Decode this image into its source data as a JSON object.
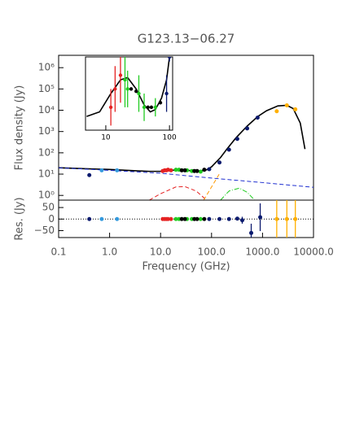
{
  "chart_data": [
    {
      "type": "scatter",
      "title": "G123.13−06.27",
      "ylabel": "Flux density (Jy)",
      "xlog": true,
      "ylog": true,
      "xlim": [
        0.1,
        10000
      ],
      "ylim": [
        0.6,
        3800000
      ],
      "yticks": [
        {
          "value": 1,
          "label": "10⁰"
        },
        {
          "value": 10,
          "label": "10¹"
        },
        {
          "value": 100,
          "label": "10²"
        },
        {
          "value": 1000,
          "label": "10³"
        },
        {
          "value": 10000,
          "label": "10⁴"
        },
        {
          "value": 100000,
          "label": "10⁵"
        },
        {
          "value": 1000000,
          "label": "10⁶"
        }
      ],
      "lines": [
        {
          "color": "#000000",
          "style": "solid",
          "x": [
            0.1,
            0.3,
            1,
            3,
            6,
            10,
            15,
            25,
            40,
            60,
            80,
            100,
            150,
            200,
            300,
            500,
            800,
            1200,
            2000,
            3000,
            4000,
            5500,
            6800
          ],
          "values": [
            20,
            18,
            16.5,
            14.5,
            13.5,
            13.5,
            15,
            16,
            14.5,
            14,
            16,
            22,
            60,
            150,
            500,
            1800,
            5000,
            9500,
            16000,
            17000,
            12000,
            2500,
            150
          ]
        },
        {
          "color": "#1f2fd0",
          "style": "dashed",
          "x": [
            0.1,
            1,
            10,
            100,
            1000,
            10000
          ],
          "values": [
            20,
            15,
            11,
            6.5,
            4,
            2.4
          ]
        },
        {
          "color": "#e52222",
          "style": "dashed",
          "x": [
            6,
            10,
            20,
            30,
            50,
            80
          ],
          "values": [
            0.6,
            1.2,
            2.5,
            2.6,
            1.6,
            0.6
          ]
        },
        {
          "color": "#ff9900",
          "style": "dashed",
          "x": [
            70,
            100,
            145
          ],
          "values": [
            0.6,
            2.5,
            11
          ]
        },
        {
          "color": "#22cc22",
          "style": "dashdot",
          "x": [
            150,
            220,
            350,
            500,
            700
          ],
          "values": [
            0.6,
            1.6,
            2.2,
            1.4,
            0.6
          ]
        }
      ],
      "series": [
        {
          "color": "#0b1a6e",
          "x": [
            0.4,
            90,
            143,
            220,
            320,
            500,
            800
          ],
          "values": [
            9,
            17,
            35,
            140,
            450,
            1400,
            4500
          ]
        },
        {
          "color": "#3399dd",
          "x": [
            0.7,
            1.4
          ],
          "values": [
            15,
            15
          ]
        },
        {
          "color": "#e52222",
          "x": [
            11,
            12,
            13,
            14,
            16
          ],
          "values": [
            14,
            15,
            15,
            16,
            15
          ]
        },
        {
          "color": "#22cc22",
          "x": [
            20,
            23,
            33,
            41,
            61
          ],
          "values": [
            16,
            16,
            15,
            14,
            13
          ]
        },
        {
          "color": "#000000",
          "x": [
            26,
            30,
            46,
            52,
            72
          ],
          "values": [
            15,
            15,
            14,
            14,
            16
          ]
        },
        {
          "color": "#ffb000",
          "x": [
            1900,
            3000,
            4400
          ],
          "values": [
            9000,
            17000,
            11000
          ]
        }
      ]
    },
    {
      "type": "scatter",
      "ylabel": "Res. (Jy)",
      "xlabel": "Frequency (GHz)",
      "xlog": true,
      "xlim": [
        0.1,
        10000
      ],
      "ylim": [
        -80,
        82
      ],
      "hline": 0,
      "xticks": [
        0.1,
        {
          "value": 1,
          "label": "1.0"
        },
        {
          "value": 10,
          "label": "10.0"
        },
        {
          "value": 100,
          "label": "100.0"
        },
        {
          "value": 1000,
          "label": "1000.0"
        },
        {
          "value": 10000,
          "label": "10000.0"
        }
      ],
      "yticks": [
        50,
        0,
        {
          "value": -50,
          "label": "−50"
        }
      ],
      "series": [
        {
          "color": "#0b1a6e",
          "x": [
            0.4,
            90,
            143,
            220,
            320,
            400,
            600,
            900
          ],
          "values": [
            0,
            0,
            0,
            0,
            2,
            -5,
            -60,
            8
          ],
          "errors": [
            2,
            2,
            2,
            3,
            5,
            15,
            40,
            60
          ]
        },
        {
          "color": "#3399dd",
          "x": [
            0.7,
            1.4
          ],
          "values": [
            0,
            0
          ]
        },
        {
          "color": "#e52222",
          "x": [
            11,
            12,
            13,
            14,
            16
          ],
          "values": [
            0,
            0,
            0,
            0,
            0
          ]
        },
        {
          "color": "#22cc22",
          "x": [
            20,
            23,
            33,
            41,
            61
          ],
          "values": [
            0,
            0,
            0,
            0,
            0
          ]
        },
        {
          "color": "#000000",
          "x": [
            26,
            30,
            46,
            52,
            72
          ],
          "values": [
            0,
            0,
            0,
            0,
            0
          ]
        },
        {
          "color": "#ffb000",
          "x": [
            1900,
            3000,
            4400
          ],
          "values": [
            0,
            0,
            0
          ],
          "errors": [
            200,
            200,
            200
          ]
        }
      ]
    },
    {
      "type": "scatter",
      "xlog": true,
      "xlim": [
        4.8,
        112
      ],
      "ylim": [
        8,
        24
      ],
      "xticks": [
        10,
        100
      ],
      "lines": [
        {
          "color": "#000000",
          "style": "solid",
          "x": [
            5,
            8,
            12,
            17,
            22,
            30,
            40,
            50,
            60,
            75,
            90,
            100
          ],
          "values": [
            11,
            12,
            16,
            19,
            19.5,
            17,
            13.5,
            12,
            12.5,
            15,
            19,
            24
          ]
        }
      ],
      "series": [
        {
          "color": "#e52222",
          "x": [
            12,
            14,
            17
          ],
          "values": [
            13,
            17,
            20
          ],
          "errors": [
            4,
            5,
            6
          ]
        },
        {
          "color": "#22cc22",
          "x": [
            20,
            22,
            33,
            40,
            60
          ],
          "values": [
            19,
            17,
            16,
            13,
            13
          ],
          "errors": [
            6,
            4,
            4,
            3,
            2
          ]
        },
        {
          "color": "#000000",
          "x": [
            25,
            30,
            46,
            52,
            72
          ],
          "values": [
            17,
            16.5,
            13,
            13,
            14
          ]
        },
        {
          "color": "#0b1a6e",
          "x": [
            90,
            100
          ],
          "values": [
            16,
            24
          ],
          "errors": [
            4,
            1
          ]
        }
      ]
    }
  ]
}
